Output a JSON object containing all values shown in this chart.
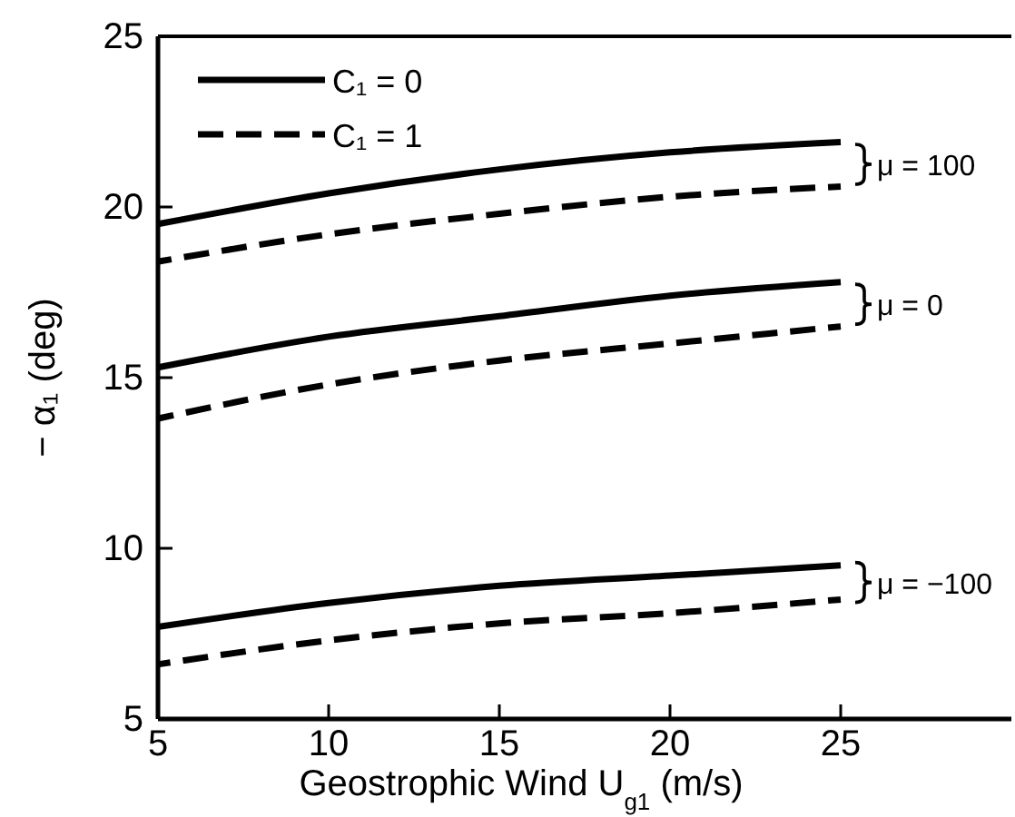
{
  "chart_data": {
    "type": "line",
    "xlabel": "Geostrophic Wind U$_{g1}$ (m/s)",
    "ylabel": "− α₁ (deg)",
    "x": [
      5,
      10,
      15,
      20,
      25
    ],
    "xlim": [
      5,
      30
    ],
    "xticks": [
      5,
      10,
      15,
      20,
      25
    ],
    "ylim": [
      5,
      25
    ],
    "yticks": [
      5,
      10,
      15,
      20,
      25
    ],
    "grid": false,
    "legend": "top left",
    "marker": "none",
    "series": [
      {
        "name": "C₁ = 0",
        "color": "#000000",
        "line_style": "solid",
        "values": [
          19.5,
          20.4,
          21.1,
          21.6,
          21.9
        ]
      },
      {
        "name": "C₁ = 1",
        "color": "#000000",
        "line_style": "dashed",
        "values": [
          18.4,
          19.2,
          19.8,
          20.3,
          20.6
        ]
      },
      {
        "color": "#000000",
        "line_style": "solid",
        "values": [
          15.3,
          16.2,
          16.8,
          17.4,
          17.8
        ]
      },
      {
        "color": "#000000",
        "line_style": "dashed",
        "values": [
          13.8,
          14.8,
          15.5,
          16.0,
          16.5
        ]
      },
      {
        "color": "#000000",
        "line_style": "solid",
        "values": [
          7.7,
          8.4,
          8.9,
          9.2,
          9.5
        ]
      },
      {
        "color": "#000000",
        "line_style": "dashed",
        "values": [
          6.6,
          7.3,
          7.8,
          8.1,
          8.5
        ]
      }
    ],
    "annotations": [
      "μ = 100",
      "μ = 0",
      "μ = −100"
    ]
  }
}
